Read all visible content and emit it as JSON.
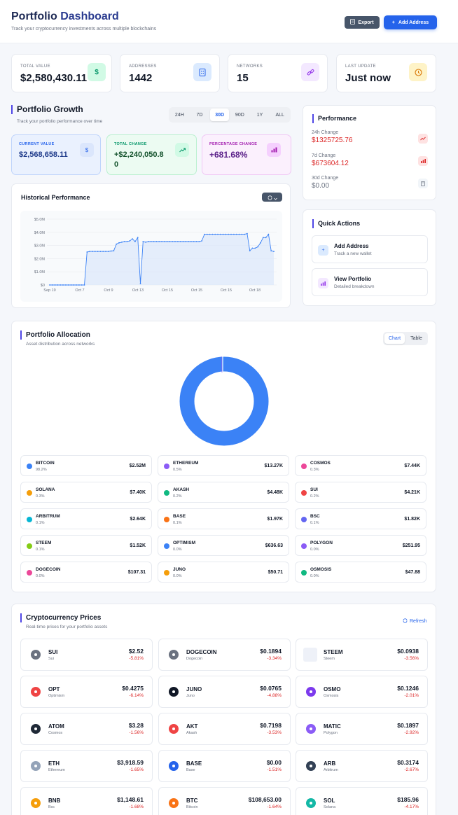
{
  "header": {
    "title_a": "Portfolio",
    "title_b": "Dashboard",
    "subtitle": "Track your cryptocurrency investments across multiple blockchains",
    "export_label": "Export",
    "add_label": "Add Address"
  },
  "stats": [
    {
      "label": "TOTAL VALUE",
      "value": "$2,580,430.11",
      "icon": "dollar-icon"
    },
    {
      "label": "ADDRESSES",
      "value": "1442",
      "icon": "building-icon"
    },
    {
      "label": "NETWORKS",
      "value": "15",
      "icon": "link-icon"
    },
    {
      "label": "LAST UPDATE",
      "value": "Just now",
      "icon": "clock-icon"
    }
  ],
  "growth": {
    "title": "Portfolio Growth",
    "subtitle": "Track your portfolio performance over time",
    "ranges": [
      "24H",
      "7D",
      "30D",
      "90D",
      "1Y",
      "ALL"
    ],
    "active_range": "30D",
    "current_label": "CURRENT VALUE",
    "current_value": "$2,568,658.11",
    "change_label": "TOTAL CHANGE",
    "change_value_1": "+$2,240,050.8",
    "change_value_2": "0",
    "pct_label": "PERCENTAGE CHANGE",
    "pct_value": "+681.68%"
  },
  "historical": {
    "title": "Historical Performance"
  },
  "chart_data": {
    "type": "line",
    "title": "Historical Performance",
    "y_ticks": [
      "$0",
      "$1.0M",
      "$2.0M",
      "$3.0M",
      "$4.0M",
      "$5.0M"
    ],
    "x_ticks": [
      "Sep 19",
      "Oct 7",
      "Oct 9",
      "Oct 13",
      "Oct 15",
      "Oct 15",
      "Oct 15",
      "Oct 18"
    ],
    "ylim": [
      0,
      5000000
    ],
    "series": [
      {
        "values": [
          0,
          0,
          0,
          0,
          0,
          0,
          0,
          0,
          0,
          0,
          0,
          0,
          0,
          0,
          2500000,
          2550000,
          2550000,
          2550000,
          2550000,
          2550000,
          2550000,
          2550000,
          2550000,
          2580000,
          2600000,
          3100000,
          3200000,
          3250000,
          3300000,
          3300000,
          3350000,
          3500000,
          3300000,
          3600000,
          100000,
          3300000,
          3250000,
          3300000,
          3300000,
          3300000,
          3300000,
          3300000,
          3300000,
          3300000,
          3300000,
          3300000,
          3300000,
          3300000,
          3300000,
          3300000,
          3300000,
          3300000,
          3300000,
          3300000,
          3300000,
          3300000,
          3300000,
          3350000,
          3850000,
          3850000,
          3850000,
          3850000,
          3850000,
          3850000,
          3850000,
          3850000,
          3850000,
          3850000,
          3850000,
          3850000,
          3850000,
          3850000,
          3850000,
          3850000,
          3900000,
          2600000,
          2800000,
          2800000,
          2900000,
          3200000,
          3600000,
          3600000,
          3850000,
          2600000,
          2550000
        ]
      }
    ]
  },
  "performance": {
    "title": "Performance",
    "rows": [
      {
        "label": "24h Change",
        "value": "$1325725.76",
        "color": "#dc2626"
      },
      {
        "label": "7d Change",
        "value": "$673604.12",
        "color": "#dc2626"
      },
      {
        "label": "30d Change",
        "value": "$0.00",
        "color": "#6b7280"
      }
    ]
  },
  "quick_actions": {
    "title": "Quick Actions",
    "items": [
      {
        "title": "Add Address",
        "sub": "Track a new wallet"
      },
      {
        "title": "View Portfolio",
        "sub": "Detailed breakdown"
      }
    ]
  },
  "allocation": {
    "title": "Portfolio Allocation",
    "subtitle": "Asset distribution across networks",
    "view_chart": "Chart",
    "view_table": "Table",
    "items": [
      {
        "name": "BITCOIN",
        "pct": "98.2%",
        "value": "$2.52M",
        "color": "#3b82f6"
      },
      {
        "name": "ETHEREUM",
        "pct": "0.5%",
        "value": "$13.27K",
        "color": "#8b5cf6"
      },
      {
        "name": "COSMOS",
        "pct": "0.3%",
        "value": "$7.44K",
        "color": "#ec4899"
      },
      {
        "name": "SOLANA",
        "pct": "0.3%",
        "value": "$7.40K",
        "color": "#f59e0b"
      },
      {
        "name": "AKASH",
        "pct": "0.2%",
        "value": "$4.48K",
        "color": "#10b981"
      },
      {
        "name": "SUI",
        "pct": "0.2%",
        "value": "$4.21K",
        "color": "#ef4444"
      },
      {
        "name": "ARBITRUM",
        "pct": "0.1%",
        "value": "$2.64K",
        "color": "#06b6d4"
      },
      {
        "name": "BASE",
        "pct": "0.1%",
        "value": "$1.97K",
        "color": "#f97316"
      },
      {
        "name": "BSC",
        "pct": "0.1%",
        "value": "$1.82K",
        "color": "#6366f1"
      },
      {
        "name": "STEEM",
        "pct": "0.1%",
        "value": "$1.52K",
        "color": "#84cc16"
      },
      {
        "name": "OPTIMISM",
        "pct": "0.0%",
        "value": "$636.63",
        "color": "#3b82f6"
      },
      {
        "name": "POLYGON",
        "pct": "0.0%",
        "value": "$251.95",
        "color": "#8b5cf6"
      },
      {
        "name": "DOGECOIN",
        "pct": "0.0%",
        "value": "$107.31",
        "color": "#ec4899"
      },
      {
        "name": "JUNO",
        "pct": "0.0%",
        "value": "$50.71",
        "color": "#f59e0b"
      },
      {
        "name": "OSMOSIS",
        "pct": "0.0%",
        "value": "$47.88",
        "color": "#10b981"
      }
    ],
    "donut_main_color": "#3b82f6"
  },
  "prices": {
    "title": "Cryptocurrency Prices",
    "subtitle": "Real-time prices for your portfolio assets",
    "refresh_label": "Refresh",
    "items": [
      {
        "sym": "SUI",
        "name": "Sui",
        "price": "$2.52",
        "change": "-5.81%",
        "color": "#6b7280"
      },
      {
        "sym": "DOGECOIN",
        "name": "Dogecoin",
        "price": "$0.1894",
        "change": "-3.34%",
        "color": "#6b7280"
      },
      {
        "sym": "STEEM",
        "name": "Steem",
        "price": "$0.0938",
        "change": "-3.56%",
        "color": "#eef1f8"
      },
      {
        "sym": "OPT",
        "name": "Optimism",
        "price": "$0.4275",
        "change": "-6.14%",
        "color": "#ef4444"
      },
      {
        "sym": "JUNO",
        "name": "Juno",
        "price": "$0.0765",
        "change": "-4.88%",
        "color": "#111827"
      },
      {
        "sym": "OSMO",
        "name": "Osmosis",
        "price": "$0.1246",
        "change": "-2.01%",
        "color": "#7c3aed"
      },
      {
        "sym": "ATOM",
        "name": "Cosmos",
        "price": "$3.28",
        "change": "-1.56%",
        "color": "#1f2937"
      },
      {
        "sym": "AKT",
        "name": "Akash",
        "price": "$0.7198",
        "change": "-3.53%",
        "color": "#ef4444"
      },
      {
        "sym": "MATIC",
        "name": "Polygon",
        "price": "$0.1897",
        "change": "-2.92%",
        "color": "#8b5cf6"
      },
      {
        "sym": "ETH",
        "name": "Ethereum",
        "price": "$3,918.59",
        "change": "-1.65%",
        "color": "#94a3b8"
      },
      {
        "sym": "BASE",
        "name": "Base",
        "price": "$0.00",
        "change": "-1.51%",
        "color": "#2563eb"
      },
      {
        "sym": "ARB",
        "name": "Arbitrum",
        "price": "$0.3174",
        "change": "-2.67%",
        "color": "#334155"
      },
      {
        "sym": "BNB",
        "name": "Bsc",
        "price": "$1,148.61",
        "change": "-1.68%",
        "color": "#f59e0b"
      },
      {
        "sym": "BTC",
        "name": "Bitcoin",
        "price": "$108,653.00",
        "change": "-1.64%",
        "color": "#f97316"
      },
      {
        "sym": "SOL",
        "name": "Solana",
        "price": "$185.96",
        "change": "-4.17%",
        "color": "#14b8a6"
      }
    ]
  }
}
